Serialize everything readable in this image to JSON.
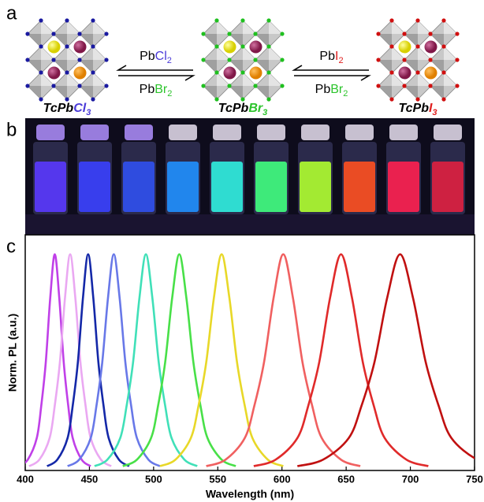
{
  "panels": [
    "a",
    "b",
    "c"
  ],
  "panel_a": {
    "structures": [
      {
        "base": "TcPb",
        "halide": "Cl",
        "subscript": "3"
      },
      {
        "base": "TcPb",
        "halide": "Br",
        "subscript": "3"
      },
      {
        "base": "TcPb",
        "halide": "I",
        "subscript": "3"
      }
    ],
    "reactions": [
      {
        "top": {
          "base": "Pb",
          "halide": "Cl",
          "subscript": "2"
        },
        "bottom": {
          "base": "Pb",
          "halide": "Br",
          "subscript": "2"
        }
      },
      {
        "top": {
          "base": "Pb",
          "halide": "I",
          "subscript": "2"
        },
        "bottom": {
          "base": "Pb",
          "halide": "Br",
          "subscript": "2"
        }
      }
    ]
  },
  "chart_data": {
    "type": "line",
    "xlabel": "Wavelength (nm)",
    "ylabel": "Norm. PL (a.u.)",
    "xlim": [
      400,
      750
    ],
    "xticks": [
      400,
      450,
      500,
      550,
      600,
      650,
      700,
      750
    ],
    "ylim": [
      0,
      1.09
    ],
    "series": [
      {
        "color": "#c040e8",
        "x": [
          395,
          402,
          409,
          412.5,
          416,
          419.5,
          423,
          426.5,
          430,
          433.5,
          437,
          444,
          451
        ],
        "values": [
          0.02,
          0.05,
          0.15,
          0.3,
          0.5,
          0.8,
          1,
          0.8,
          0.5,
          0.3,
          0.15,
          0.05,
          0.02
        ]
      },
      {
        "color": "#eaa8f2",
        "x": [
          403,
          411,
          419,
          423,
          427,
          431,
          435,
          439,
          443,
          447,
          451,
          459,
          467
        ],
        "values": [
          0.02,
          0.05,
          0.15,
          0.3,
          0.5,
          0.8,
          1,
          0.8,
          0.5,
          0.3,
          0.15,
          0.05,
          0.02
        ]
      },
      {
        "color": "#1428a8",
        "x": [
          417,
          425,
          433,
          437,
          441,
          445,
          449,
          453,
          457,
          461,
          465,
          473,
          481
        ],
        "values": [
          0.02,
          0.05,
          0.15,
          0.3,
          0.5,
          0.8,
          1,
          0.8,
          0.5,
          0.3,
          0.15,
          0.05,
          0.02
        ]
      },
      {
        "color": "#6878e8",
        "x": [
          433,
          442,
          451,
          455.5,
          460,
          464.5,
          469,
          473.5,
          478,
          482.5,
          487,
          496,
          505
        ],
        "values": [
          0.02,
          0.05,
          0.15,
          0.3,
          0.5,
          0.8,
          1,
          0.8,
          0.5,
          0.3,
          0.15,
          0.05,
          0.02
        ]
      },
      {
        "color": "#40e0b8",
        "x": [
          454,
          464,
          474,
          479,
          484,
          489,
          494,
          499,
          504,
          509,
          514,
          524,
          534
        ],
        "values": [
          0.02,
          0.05,
          0.15,
          0.3,
          0.5,
          0.8,
          1,
          0.8,
          0.5,
          0.3,
          0.15,
          0.05,
          0.02
        ]
      },
      {
        "color": "#48e048",
        "x": [
          476,
          487,
          498,
          503.5,
          509,
          514.5,
          520,
          525.5,
          531,
          536.5,
          542,
          553,
          564
        ],
        "values": [
          0.02,
          0.05,
          0.15,
          0.3,
          0.5,
          0.8,
          1,
          0.8,
          0.5,
          0.3,
          0.15,
          0.05,
          0.02
        ]
      },
      {
        "color": "#e8d828",
        "x": [
          505,
          517,
          529,
          535,
          541,
          547,
          553,
          559,
          565,
          571,
          577,
          589,
          601
        ],
        "values": [
          0.02,
          0.05,
          0.15,
          0.3,
          0.5,
          0.8,
          1,
          0.8,
          0.5,
          0.3,
          0.15,
          0.05,
          0.02
        ]
      },
      {
        "color": "#f06060",
        "x": [
          541,
          556,
          571,
          578.5,
          586,
          593.5,
          601,
          608.5,
          616,
          623.5,
          631,
          646,
          661
        ],
        "values": [
          0.02,
          0.05,
          0.15,
          0.3,
          0.5,
          0.8,
          1,
          0.8,
          0.5,
          0.3,
          0.15,
          0.05,
          0.02
        ]
      },
      {
        "color": "#e02a2a",
        "x": [
          578,
          595,
          612,
          620.5,
          629,
          637.5,
          646,
          654.5,
          663,
          671.5,
          680,
          697,
          714
        ],
        "values": [
          0.02,
          0.05,
          0.15,
          0.3,
          0.5,
          0.8,
          1,
          0.8,
          0.5,
          0.3,
          0.15,
          0.05,
          0.02
        ]
      },
      {
        "color": "#c01010",
        "x": [
          612,
          632,
          652,
          662,
          672,
          682,
          692,
          702,
          712,
          722,
          732,
          752,
          772
        ],
        "values": [
          0.02,
          0.05,
          0.15,
          0.3,
          0.5,
          0.8,
          1,
          0.8,
          0.5,
          0.3,
          0.15,
          0.05,
          0.02
        ]
      }
    ]
  }
}
